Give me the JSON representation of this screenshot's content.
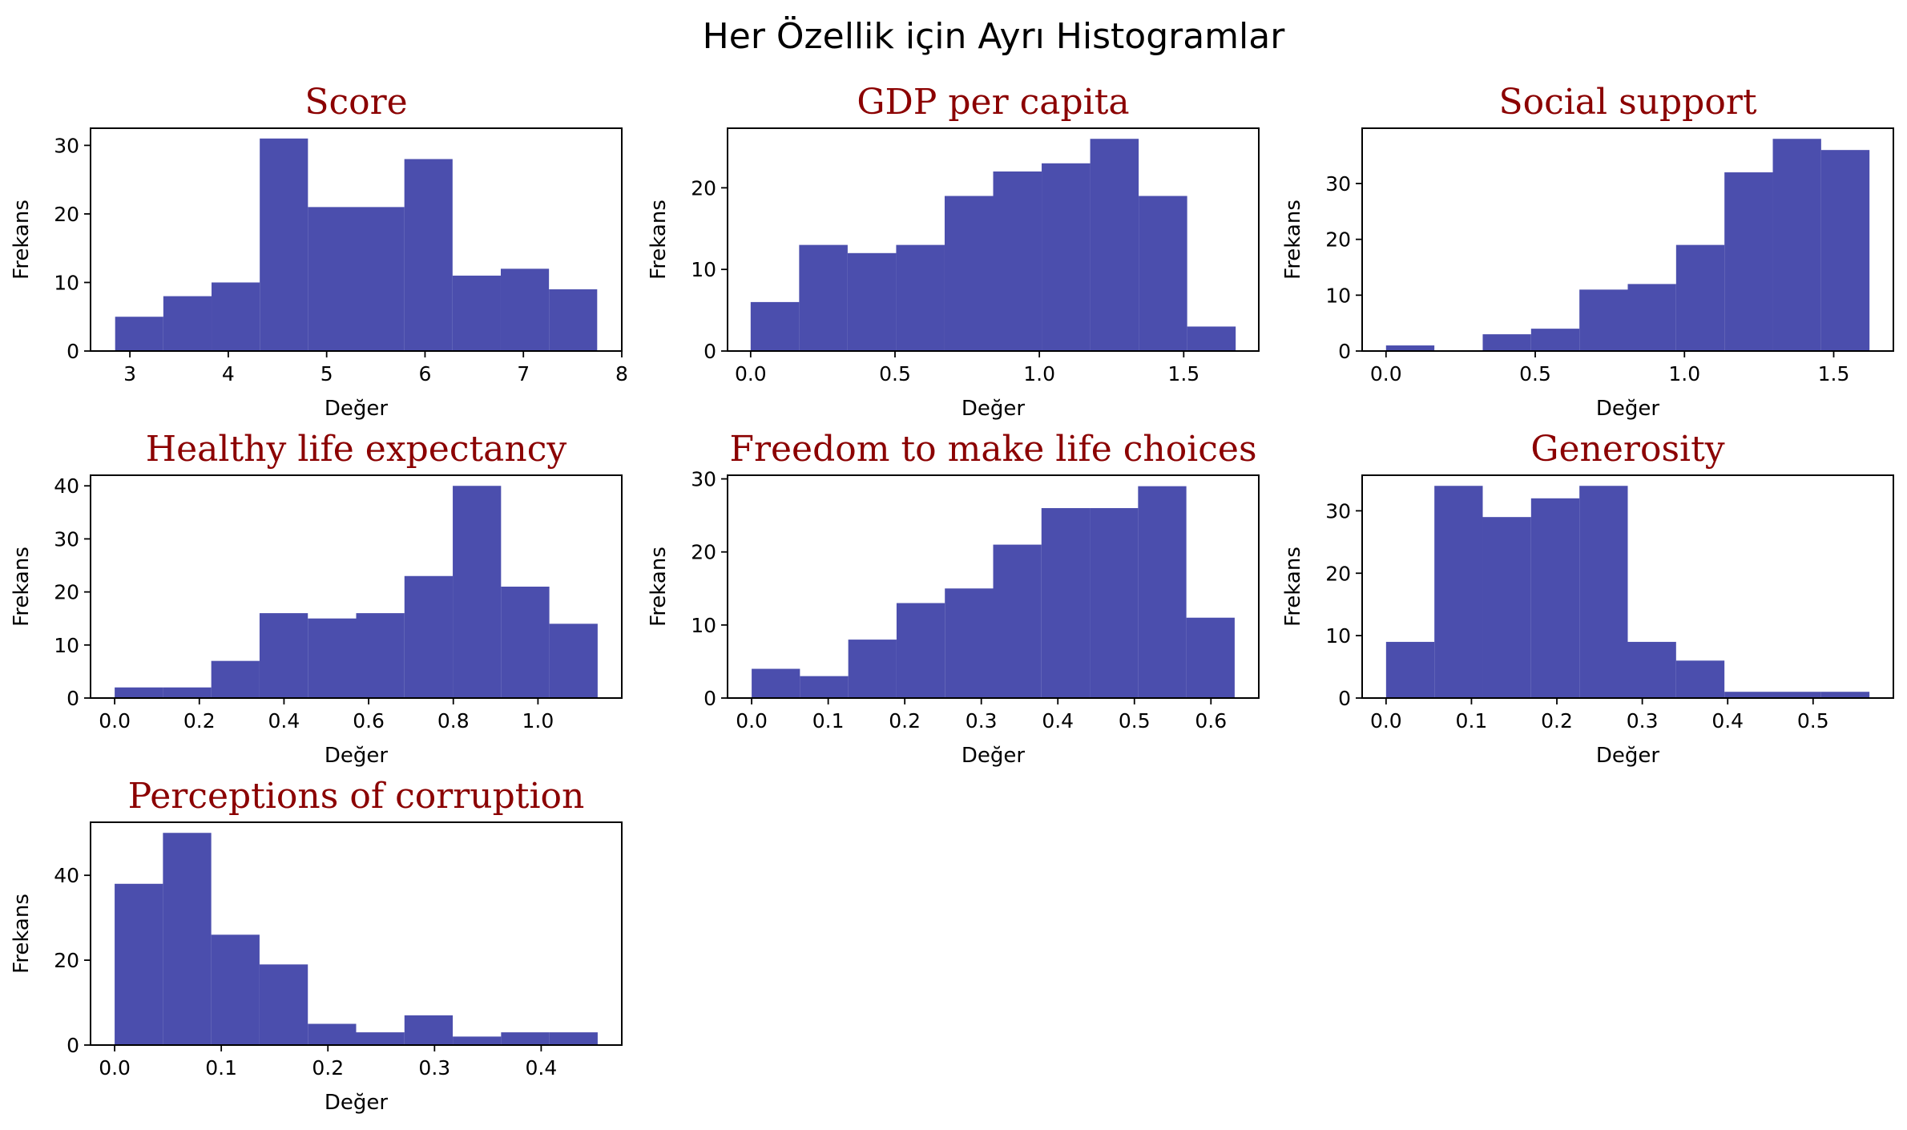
{
  "suptitle": "Her Özellik için Ayrı Histogramlar",
  "colors": {
    "bar": "#4b4ead",
    "title": "#8b0000"
  },
  "chart_data": [
    {
      "type": "bar",
      "title": "Score",
      "xlabel": "Değer",
      "ylabel": "Frekans",
      "xlim": [
        2.6,
        8.0
      ],
      "ylim": [
        0,
        32.5
      ],
      "xticks": [
        3,
        4,
        5,
        6,
        7,
        8
      ],
      "xtick_labels": [
        "3",
        "4",
        "5",
        "6",
        "7",
        "8"
      ],
      "yticks": [
        0,
        10,
        20,
        30
      ],
      "ytick_labels": [
        "0",
        "10",
        "20",
        "30"
      ],
      "bin_edges": [
        2.85,
        3.34,
        3.83,
        4.32,
        4.81,
        5.3,
        5.79,
        6.28,
        6.77,
        7.26,
        7.75
      ],
      "counts": [
        5,
        8,
        10,
        31,
        21,
        21,
        28,
        11,
        12,
        9
      ]
    },
    {
      "type": "bar",
      "title": "GDP per capita",
      "xlabel": "Değer",
      "ylabel": "Frekans",
      "xlim": [
        -0.08,
        1.76
      ],
      "ylim": [
        0,
        27.3
      ],
      "xticks": [
        0,
        0.5,
        1.0,
        1.5
      ],
      "xtick_labels": [
        "0.0",
        "0.5",
        "1.0",
        "1.5"
      ],
      "yticks": [
        0,
        10,
        20
      ],
      "ytick_labels": [
        "0",
        "10",
        "20"
      ],
      "bin_edges": [
        0,
        0.168,
        0.336,
        0.504,
        0.672,
        0.84,
        1.008,
        1.176,
        1.344,
        1.512,
        1.68
      ],
      "counts": [
        6,
        13,
        12,
        13,
        19,
        22,
        23,
        26,
        19,
        3
      ]
    },
    {
      "type": "bar",
      "title": "Social support",
      "xlabel": "Değer",
      "ylabel": "Frekans",
      "xlim": [
        -0.08,
        1.7
      ],
      "ylim": [
        0,
        39.9
      ],
      "xticks": [
        0,
        0.5,
        1.0,
        1.5
      ],
      "xtick_labels": [
        "0.0",
        "0.5",
        "1.0",
        "1.5"
      ],
      "yticks": [
        0,
        10,
        20,
        30
      ],
      "ytick_labels": [
        "0",
        "10",
        "20",
        "30"
      ],
      "bin_edges": [
        0,
        0.162,
        0.324,
        0.486,
        0.648,
        0.81,
        0.972,
        1.134,
        1.296,
        1.458,
        1.62
      ],
      "counts": [
        1,
        0,
        3,
        4,
        11,
        12,
        19,
        32,
        38,
        36
      ]
    },
    {
      "type": "bar",
      "title": "Healthy life expectancy",
      "xlabel": "Değer",
      "ylabel": "Frekans",
      "xlim": [
        -0.057,
        1.198
      ],
      "ylim": [
        0,
        42
      ],
      "xticks": [
        0,
        0.2,
        0.4,
        0.6,
        0.8,
        1.0
      ],
      "xtick_labels": [
        "0.0",
        "0.2",
        "0.4",
        "0.6",
        "0.8",
        "1.0"
      ],
      "yticks": [
        0,
        10,
        20,
        30,
        40
      ],
      "ytick_labels": [
        "0",
        "10",
        "20",
        "30",
        "40"
      ],
      "bin_edges": [
        0,
        0.1141,
        0.2282,
        0.3423,
        0.4564,
        0.5705,
        0.6846,
        0.7987,
        0.9128,
        1.0269,
        1.141
      ],
      "counts": [
        2,
        2,
        7,
        16,
        15,
        16,
        23,
        40,
        21,
        14
      ]
    },
    {
      "type": "bar",
      "title": "Freedom to make life choices",
      "xlabel": "Değer",
      "ylabel": "Frekans",
      "xlim": [
        -0.0315,
        0.6625
      ],
      "ylim": [
        0,
        30.5
      ],
      "xticks": [
        0,
        0.1,
        0.2,
        0.3,
        0.4,
        0.5,
        0.6
      ],
      "xtick_labels": [
        "0.0",
        "0.1",
        "0.2",
        "0.3",
        "0.4",
        "0.5",
        "0.6"
      ],
      "yticks": [
        0,
        10,
        20,
        30
      ],
      "ytick_labels": [
        "0",
        "10",
        "20",
        "30"
      ],
      "bin_edges": [
        0,
        0.0631,
        0.1262,
        0.1893,
        0.2524,
        0.3155,
        0.3786,
        0.4417,
        0.5048,
        0.5679,
        0.631
      ],
      "counts": [
        4,
        3,
        8,
        13,
        15,
        21,
        26,
        26,
        29,
        11
      ]
    },
    {
      "type": "bar",
      "title": "Generosity",
      "xlabel": "Değer",
      "ylabel": "Frekans",
      "xlim": [
        -0.028,
        0.594
      ],
      "ylim": [
        0,
        35.7
      ],
      "xticks": [
        0,
        0.1,
        0.2,
        0.3,
        0.4,
        0.5
      ],
      "xtick_labels": [
        "0.0",
        "0.1",
        "0.2",
        "0.3",
        "0.4",
        "0.5"
      ],
      "yticks": [
        0,
        10,
        20,
        30
      ],
      "ytick_labels": [
        "0",
        "10",
        "20",
        "30"
      ],
      "bin_edges": [
        0,
        0.0566,
        0.1132,
        0.1698,
        0.2264,
        0.283,
        0.3396,
        0.3962,
        0.4528,
        0.5094,
        0.566
      ],
      "counts": [
        9,
        34,
        29,
        32,
        34,
        9,
        6,
        1,
        1,
        1
      ]
    },
    {
      "type": "bar",
      "title": "Perceptions of corruption",
      "xlabel": "Değer",
      "ylabel": "Frekans",
      "xlim": [
        -0.0226,
        0.4756
      ],
      "ylim": [
        0,
        52.5
      ],
      "xticks": [
        0,
        0.1,
        0.2,
        0.3,
        0.4
      ],
      "xtick_labels": [
        "0.0",
        "0.1",
        "0.2",
        "0.3",
        "0.4"
      ],
      "yticks": [
        0,
        20,
        40
      ],
      "ytick_labels": [
        "0",
        "20",
        "40"
      ],
      "bin_edges": [
        0,
        0.0453,
        0.0906,
        0.1359,
        0.1812,
        0.2265,
        0.2718,
        0.3171,
        0.3624,
        0.4077,
        0.453
      ],
      "counts": [
        38,
        50,
        26,
        19,
        5,
        3,
        7,
        2,
        3,
        3
      ]
    }
  ]
}
